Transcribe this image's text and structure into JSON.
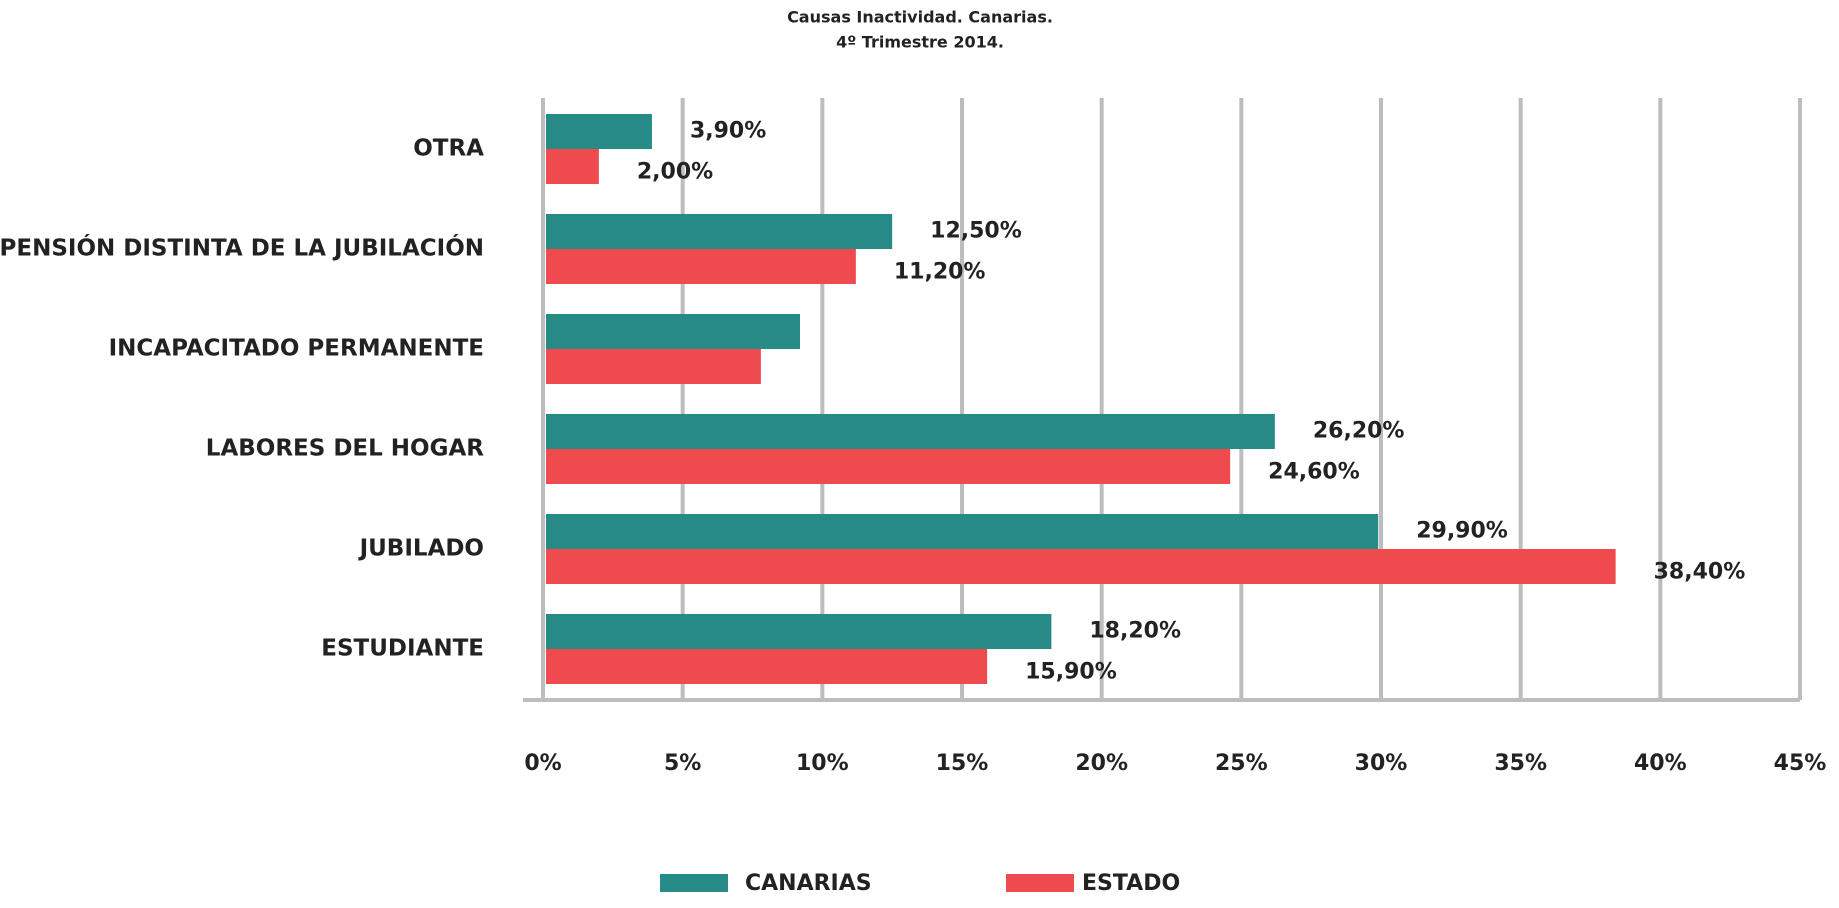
{
  "chart_data": {
    "type": "hbar",
    "title": "Causas Inactividad. Canarias.",
    "subtitle": "4º Trimestre 2014.",
    "categories": [
      "OTRA",
      "PENSIÓN DISTINTA DE LA JUBILACIÓN",
      "INCAPACITADO PERMANENTE",
      "LABORES DEL HOGAR",
      "JUBILADO",
      "ESTUDIANTE"
    ],
    "series": [
      {
        "name": "CANARIAS",
        "color": "#268a87",
        "values": [
          3.9,
          12.5,
          9.2,
          26.2,
          29.9,
          18.2
        ],
        "value_labels": [
          "3,90%",
          "12,50%",
          null,
          "26,20%",
          "29,90%",
          "18,20%"
        ]
      },
      {
        "name": "ESTADO",
        "color": "#ef4b4f",
        "values": [
          2.0,
          11.2,
          7.8,
          24.6,
          38.4,
          15.9
        ],
        "value_labels": [
          "2,00%",
          "11,20%",
          null,
          "24,60%",
          "38,40%",
          "15,90%"
        ]
      }
    ],
    "xlim": [
      0,
      45
    ],
    "xticks": [
      {
        "value": 0,
        "label": "0%"
      },
      {
        "value": 5,
        "label": "5%"
      },
      {
        "value": 10,
        "label": "10%"
      },
      {
        "value": 15,
        "label": "15%"
      },
      {
        "value": 20,
        "label": "20%"
      },
      {
        "value": 25,
        "label": "25%"
      },
      {
        "value": 30,
        "label": "30%"
      },
      {
        "value": 35,
        "label": "35%"
      },
      {
        "value": 40,
        "label": "40%"
      },
      {
        "value": 45,
        "label": "45%"
      }
    ],
    "grid": true,
    "legend": "bottom"
  }
}
